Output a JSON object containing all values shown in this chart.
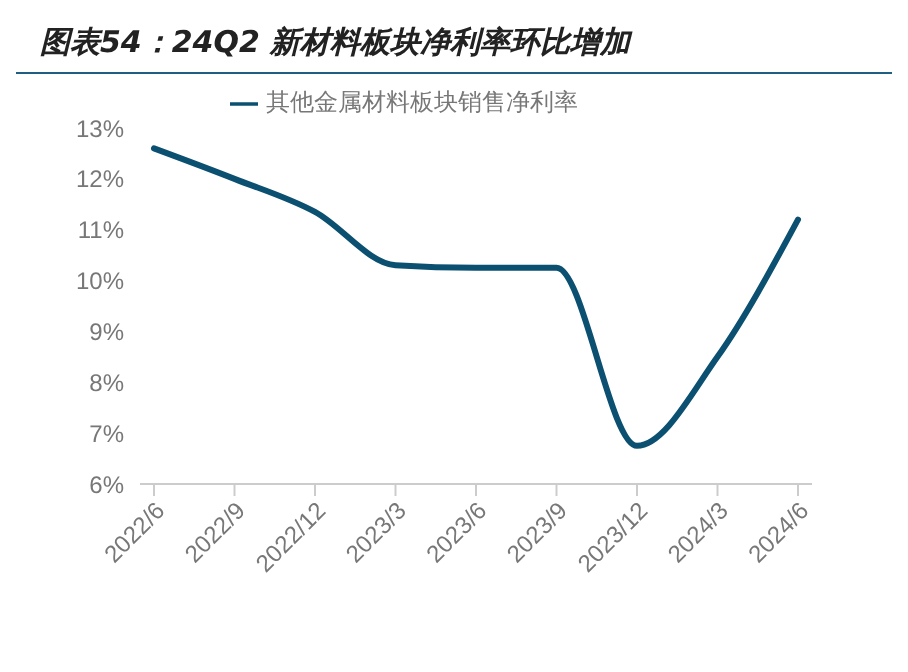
{
  "chart_data": {
    "type": "line",
    "title": "图表54：24Q2 新材料板块净利率环比增加",
    "categories": [
      "2022/6",
      "2022/9",
      "2022/12",
      "2023/3",
      "2023/6",
      "2023/9",
      "2023/12",
      "2024/3",
      "2024/6"
    ],
    "series": [
      {
        "name": "其他金属材料板块销售净利率",
        "color": "#0b4f71",
        "values": [
          12.6,
          12.0,
          11.35,
          10.3,
          10.25,
          10.25,
          6.75,
          8.5,
          11.2
        ]
      }
    ],
    "ylim": [
      6,
      13
    ],
    "yticks": [
      {
        "value": 6,
        "label": "6%"
      },
      {
        "value": 7,
        "label": "7%"
      },
      {
        "value": 8,
        "label": "8%"
      },
      {
        "value": 9,
        "label": "9%"
      },
      {
        "value": 10,
        "label": "10%"
      },
      {
        "value": 11,
        "label": "11%"
      },
      {
        "value": 12,
        "label": "12%"
      },
      {
        "value": 13,
        "label": "13%"
      }
    ],
    "legend": "top",
    "grid": false,
    "marker": "none",
    "line_style": "solid"
  }
}
